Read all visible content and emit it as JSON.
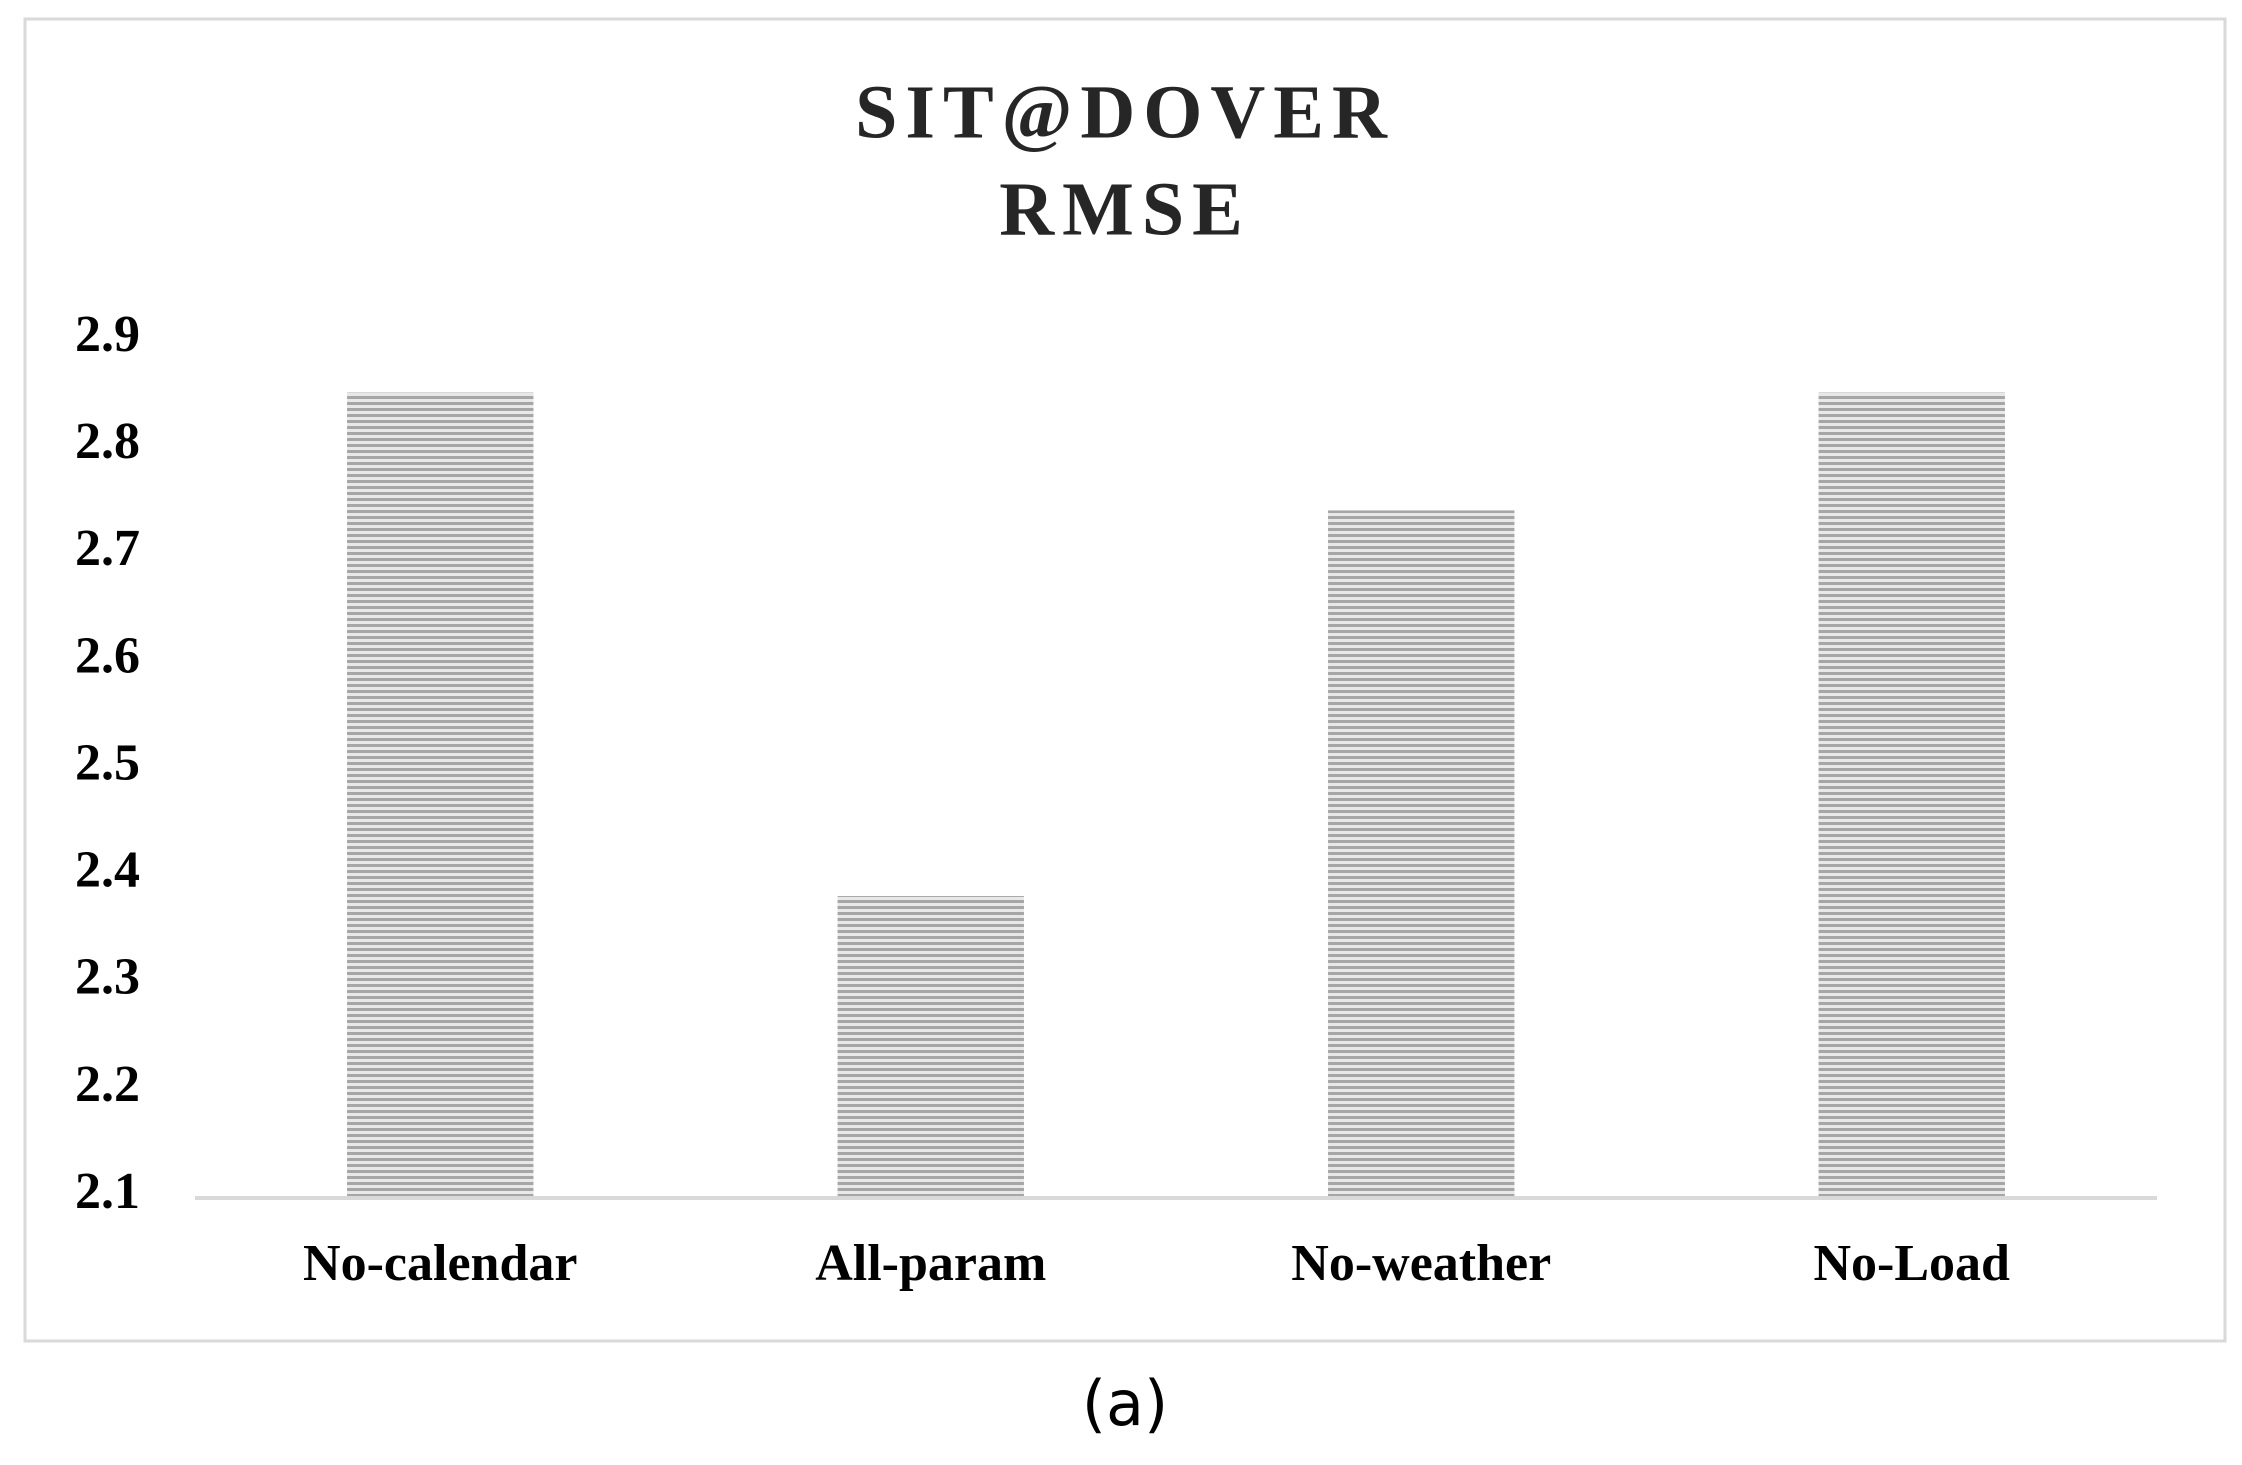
{
  "chart_data": {
    "type": "bar",
    "title": "SIT@DOVER",
    "subtitle": "RMSE",
    "categories": [
      "No-calendar",
      "All-param",
      "No-weather",
      "No-Load"
    ],
    "values": [
      2.85,
      2.38,
      2.74,
      2.85
    ],
    "color": "#a6a6a6",
    "ylim": [
      2.1,
      2.9
    ],
    "yticks": [
      2.1,
      2.2,
      2.3,
      2.4,
      2.5,
      2.6,
      2.7,
      2.8,
      2.9
    ],
    "grid": false
  },
  "caption": "(a)"
}
